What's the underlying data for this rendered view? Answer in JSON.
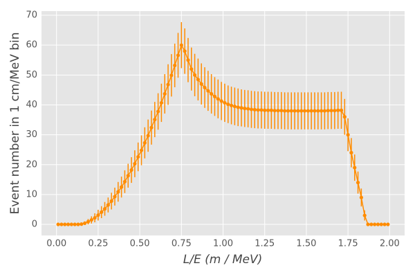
{
  "chart_data": {
    "type": "errorbar",
    "xlabel": "L/E (m / MeV)",
    "ylabel": "Event number in 1 cm/MeV bin",
    "color": "#ff8c00",
    "grid": true,
    "xlim": [
      -0.09,
      2.09
    ],
    "ylim": [
      -3.7,
      71.4
    ],
    "xticks": [
      {
        "value": 0,
        "label": "0.00"
      },
      {
        "value": 0.25,
        "label": "0.25"
      },
      {
        "value": 0.5,
        "label": "0.50"
      },
      {
        "value": 0.75,
        "label": "0.75"
      },
      {
        "value": 1,
        "label": "1.00"
      },
      {
        "value": 1.25,
        "label": "1.25"
      },
      {
        "value": 1.5,
        "label": "1.50"
      },
      {
        "value": 1.75,
        "label": "1.75"
      },
      {
        "value": 2,
        "label": "2.00"
      }
    ],
    "yticks": [
      0,
      10,
      20,
      30,
      40,
      50,
      60,
      70
    ],
    "x": [
      0.01,
      0.03,
      0.05,
      0.07,
      0.09,
      0.11,
      0.13,
      0.15,
      0.17,
      0.19,
      0.21,
      0.23,
      0.25,
      0.27,
      0.29,
      0.31,
      0.33,
      0.35,
      0.37,
      0.39,
      0.41,
      0.43,
      0.45,
      0.47,
      0.49,
      0.51,
      0.53,
      0.55,
      0.57,
      0.59,
      0.61,
      0.63,
      0.65,
      0.67,
      0.69,
      0.71,
      0.73,
      0.75,
      0.77,
      0.79,
      0.81,
      0.83,
      0.85,
      0.87,
      0.89,
      0.91,
      0.93,
      0.95,
      0.97,
      0.99,
      1.01,
      1.03,
      1.05,
      1.07,
      1.09,
      1.11,
      1.13,
      1.15,
      1.17,
      1.19,
      1.21,
      1.23,
      1.25,
      1.27,
      1.29,
      1.31,
      1.33,
      1.35,
      1.37,
      1.39,
      1.41,
      1.43,
      1.45,
      1.47,
      1.49,
      1.51,
      1.53,
      1.55,
      1.57,
      1.59,
      1.61,
      1.63,
      1.65,
      1.67,
      1.69,
      1.71,
      1.73,
      1.75,
      1.77,
      1.79,
      1.81,
      1.83,
      1.85,
      1.87,
      1.89,
      1.91,
      1.93,
      1.95,
      1.97,
      1.99
    ],
    "values": [
      0,
      0,
      0,
      0,
      0,
      0,
      0,
      0.1,
      0.4,
      0.9,
      1.5,
      2.2,
      3.1,
      4.1,
      5.2,
      6.5,
      7.8,
      9.3,
      10.9,
      12.5,
      14.3,
      16.3,
      18.2,
      20.3,
      22.6,
      24.8,
      27.3,
      29.7,
      32.4,
      35.1,
      37.8,
      40.7,
      43.7,
      46.8,
      49.9,
      53.2,
      56.6,
      60,
      58,
      55,
      52,
      50,
      48.5,
      47,
      45.8,
      44.7,
      43.7,
      42.8,
      42,
      41.3,
      40.7,
      40.2,
      39.8,
      39.5,
      39.2,
      39,
      38.8,
      38.7,
      38.5,
      38.4,
      38.3,
      38.3,
      38.2,
      38.2,
      38.2,
      38.1,
      38.1,
      38.1,
      38,
      38,
      38,
      38,
      38,
      38,
      38,
      38,
      38,
      38,
      38,
      38,
      38,
      38.1,
      38.1,
      38.1,
      38.2,
      38.2,
      36,
      30,
      24,
      19,
      14,
      9,
      3,
      0,
      0,
      0,
      0,
      0,
      0,
      0
    ],
    "errors": [
      0,
      0,
      0,
      0,
      0,
      0,
      0,
      0.3,
      0.6,
      0.9,
      1.2,
      1.5,
      1.8,
      2,
      2.3,
      2.5,
      2.8,
      3,
      3.3,
      3.5,
      3.8,
      4,
      4.3,
      4.5,
      4.8,
      5,
      5.2,
      5.4,
      5.7,
      5.9,
      6.1,
      6.4,
      6.6,
      6.8,
      7.1,
      7.3,
      7.5,
      7.7,
      7.6,
      7.4,
      7.2,
      7.1,
      7,
      6.9,
      6.8,
      6.7,
      6.6,
      6.5,
      6.5,
      6.4,
      6.4,
      6.3,
      6.3,
      6.3,
      6.3,
      6.2,
      6.2,
      6.2,
      6.2,
      6.2,
      6.2,
      6.2,
      6.2,
      6.2,
      6.2,
      6.2,
      6.2,
      6.2,
      6.2,
      6.2,
      6.2,
      6.2,
      6.2,
      6.2,
      6.2,
      6.2,
      6.2,
      6.2,
      6.2,
      6.2,
      6.2,
      6.2,
      6.2,
      6.2,
      6.2,
      6.2,
      6,
      5.5,
      4.9,
      4.4,
      3.7,
      3,
      1.7,
      0,
      0,
      0,
      0,
      0,
      0,
      0
    ]
  }
}
